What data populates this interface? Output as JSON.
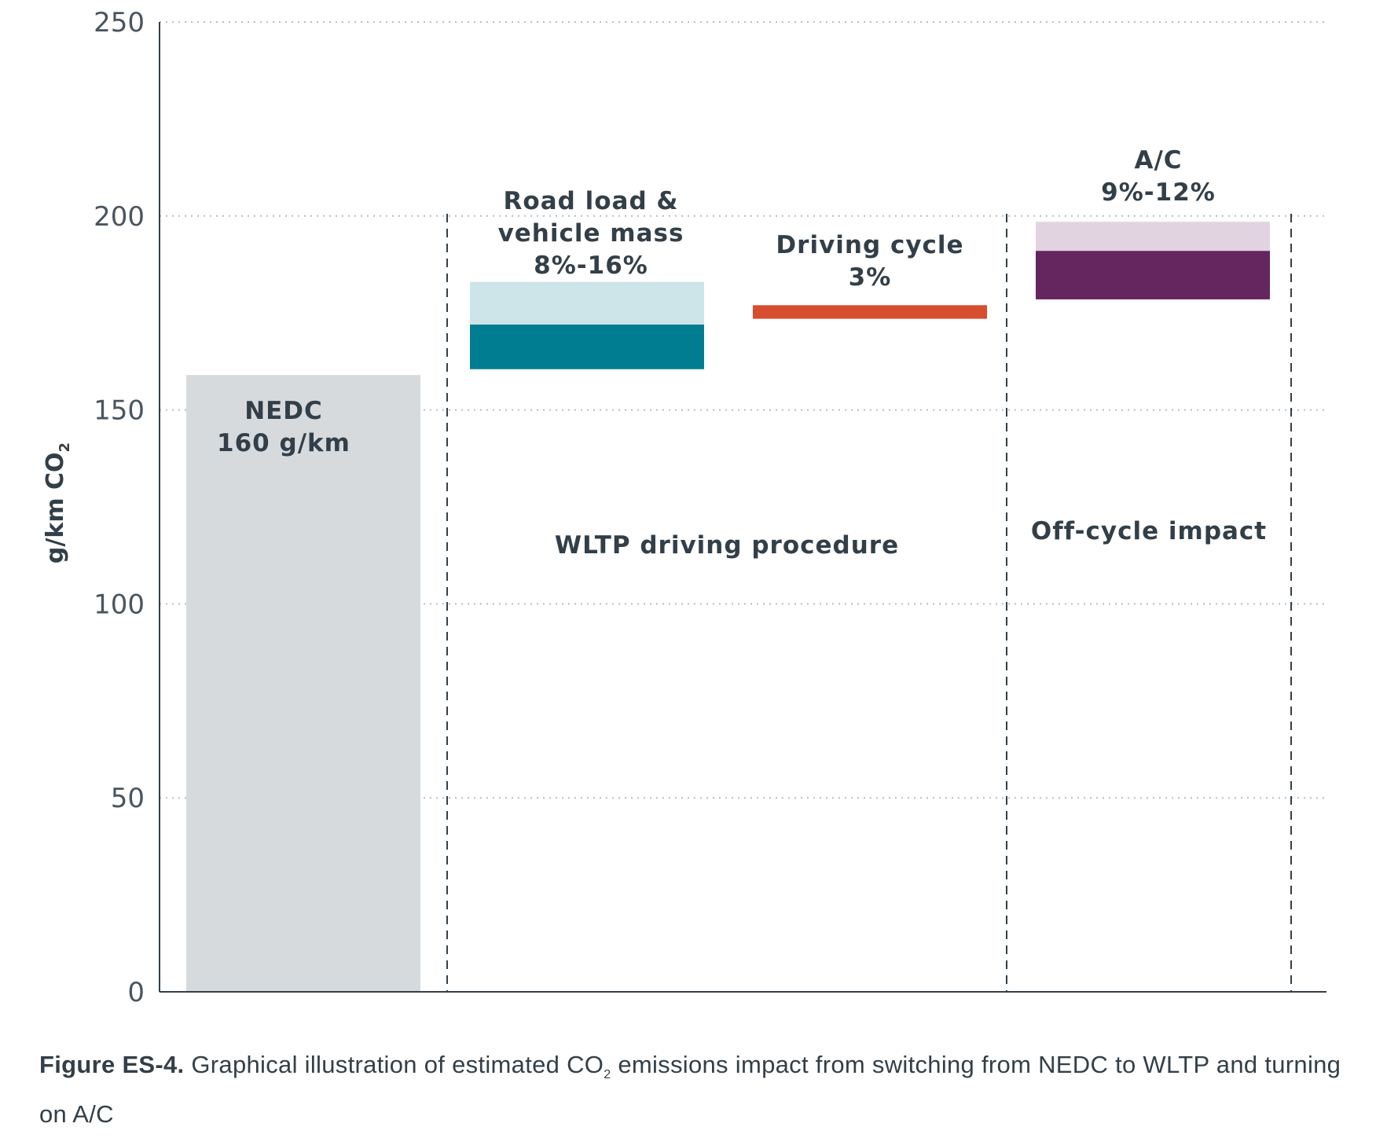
{
  "chart_data": {
    "type": "bar",
    "title": "",
    "ylabel": "g/km CO",
    "ylabel_subscript": "2",
    "ylim": [
      0,
      250
    ],
    "yticks": [
      "0",
      "50",
      "100",
      "150",
      "200",
      "250"
    ],
    "grid": "horizontal-dotted",
    "segments": [
      {
        "id": "nedc",
        "name": "NEDC",
        "label_lines": [
          "NEDC",
          "160 g/km"
        ],
        "bottom": 0,
        "top": 159,
        "color": "#d7dadd"
      },
      {
        "id": "roadload-high",
        "name": "Road load & vehicle mass (upper range)",
        "bottom": 172,
        "top": 183,
        "color": "#cde4e9"
      },
      {
        "id": "roadload-low",
        "name": "Road load & vehicle mass",
        "label_lines": [
          "Road load &",
          "vehicle mass",
          "8%-16%"
        ],
        "bottom": 160.5,
        "top": 172,
        "color": "#007d91"
      },
      {
        "id": "driving-cycle",
        "name": "Driving cycle",
        "label_lines": [
          "Driving cycle",
          "3%"
        ],
        "bottom": 173.5,
        "top": 177,
        "color": "#d64e2e"
      },
      {
        "id": "ac-high",
        "name": "A/C (upper range)",
        "bottom": 191,
        "top": 198.5,
        "color": "#e1d3e0"
      },
      {
        "id": "ac-low",
        "name": "A/C",
        "label_lines": [
          "A/C",
          "9%-12%"
        ],
        "bottom": 178.5,
        "top": 191,
        "color": "#65255f"
      }
    ],
    "regions": [
      {
        "id": "wltp",
        "label": "WLTP driving procedure"
      },
      {
        "id": "offcycle",
        "label": "Off-cycle impact"
      }
    ]
  },
  "caption": {
    "figure_label": "Figure ES-4.",
    "text_before_sub": " Graphical illustration of estimated CO",
    "subscript": "2",
    "text_after_sub": " emissions impact from switching from NEDC to WLTP and turning on A/C"
  }
}
